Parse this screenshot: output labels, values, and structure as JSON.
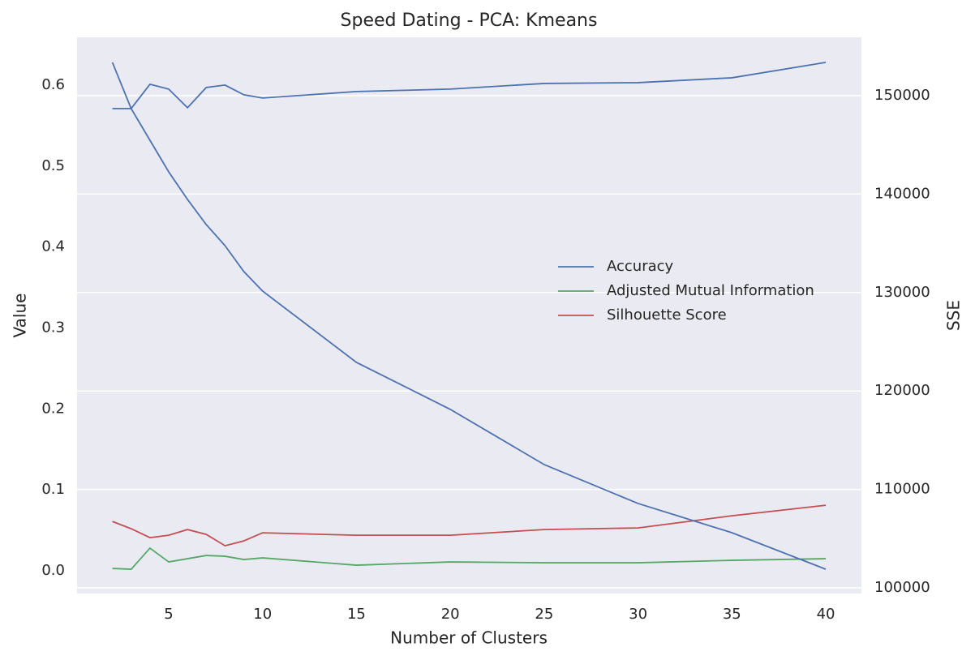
{
  "chart_data": {
    "type": "line",
    "title": "Speed Dating - PCA: Kmeans",
    "xlabel": "Number of Clusters",
    "ylabel": "Value",
    "y2label": "SSE",
    "x": [
      2,
      3,
      4,
      5,
      6,
      7,
      8,
      9,
      10,
      15,
      20,
      25,
      30,
      35,
      40
    ],
    "series": [
      {
        "name": "Accuracy",
        "color": "#4c72b0",
        "values": [
          0.571,
          0.571,
          0.601,
          0.595,
          0.572,
          0.597,
          0.6,
          0.588,
          0.584,
          0.592,
          0.595,
          0.602,
          0.603,
          0.609,
          0.628
        ]
      },
      {
        "name": "Adjusted Mutual Information",
        "color": "#55a868",
        "values": [
          0.003,
          0.002,
          0.028,
          0.011,
          0.015,
          0.019,
          0.018,
          0.014,
          0.016,
          0.007,
          0.011,
          0.01,
          0.01,
          0.013,
          0.015
        ]
      },
      {
        "name": "Silhouette Score",
        "color": "#c44e52",
        "values": [
          0.061,
          0.052,
          0.041,
          0.044,
          0.051,
          0.045,
          0.031,
          0.037,
          0.047,
          0.044,
          0.044,
          0.051,
          0.053,
          0.068,
          0.081
        ]
      },
      {
        "color": "#4c72b0",
        "axis": "y2",
        "values": [
          153380,
          148680,
          145470,
          142260,
          139460,
          136900,
          134760,
          132130,
          130150,
          122900,
          118130,
          112520,
          108570,
          105600,
          101890
        ]
      }
    ],
    "xlim": [
      0.117,
      41.9
    ],
    "xticks": [
      5,
      10,
      15,
      20,
      25,
      30,
      35,
      40
    ],
    "ylim": [
      -0.028,
      0.659
    ],
    "yticks": [
      {
        "value": 0,
        "label": "0.0"
      },
      0.1,
      0.2,
      0.3,
      0.4,
      0.5,
      0.6
    ],
    "y2lim": [
      99423,
      155930
    ],
    "y2ticks": [
      100000,
      110000,
      120000,
      130000,
      140000,
      150000
    ],
    "grid": "y2",
    "legend": "center right",
    "background": "#eaeaf2"
  }
}
